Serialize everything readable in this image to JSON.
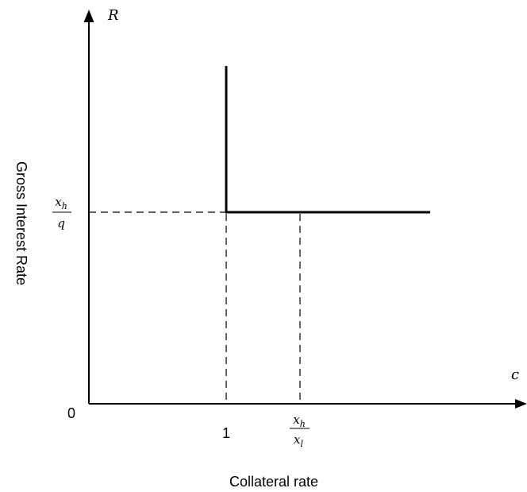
{
  "y_axis": {
    "symbol": "R",
    "title": "Gross Interest Rate"
  },
  "x_axis": {
    "symbol": "c",
    "title": "Collateral rate"
  },
  "origin_label": "0",
  "x_tick_one": "1",
  "x_tick_fraction": {
    "numerator_base": "x",
    "numerator_sub": "h",
    "denominator_base": "x",
    "denominator_sub": "l"
  },
  "y_tick_fraction": {
    "numerator_base": "x",
    "numerator_sub": "h",
    "denominator": "q"
  }
}
